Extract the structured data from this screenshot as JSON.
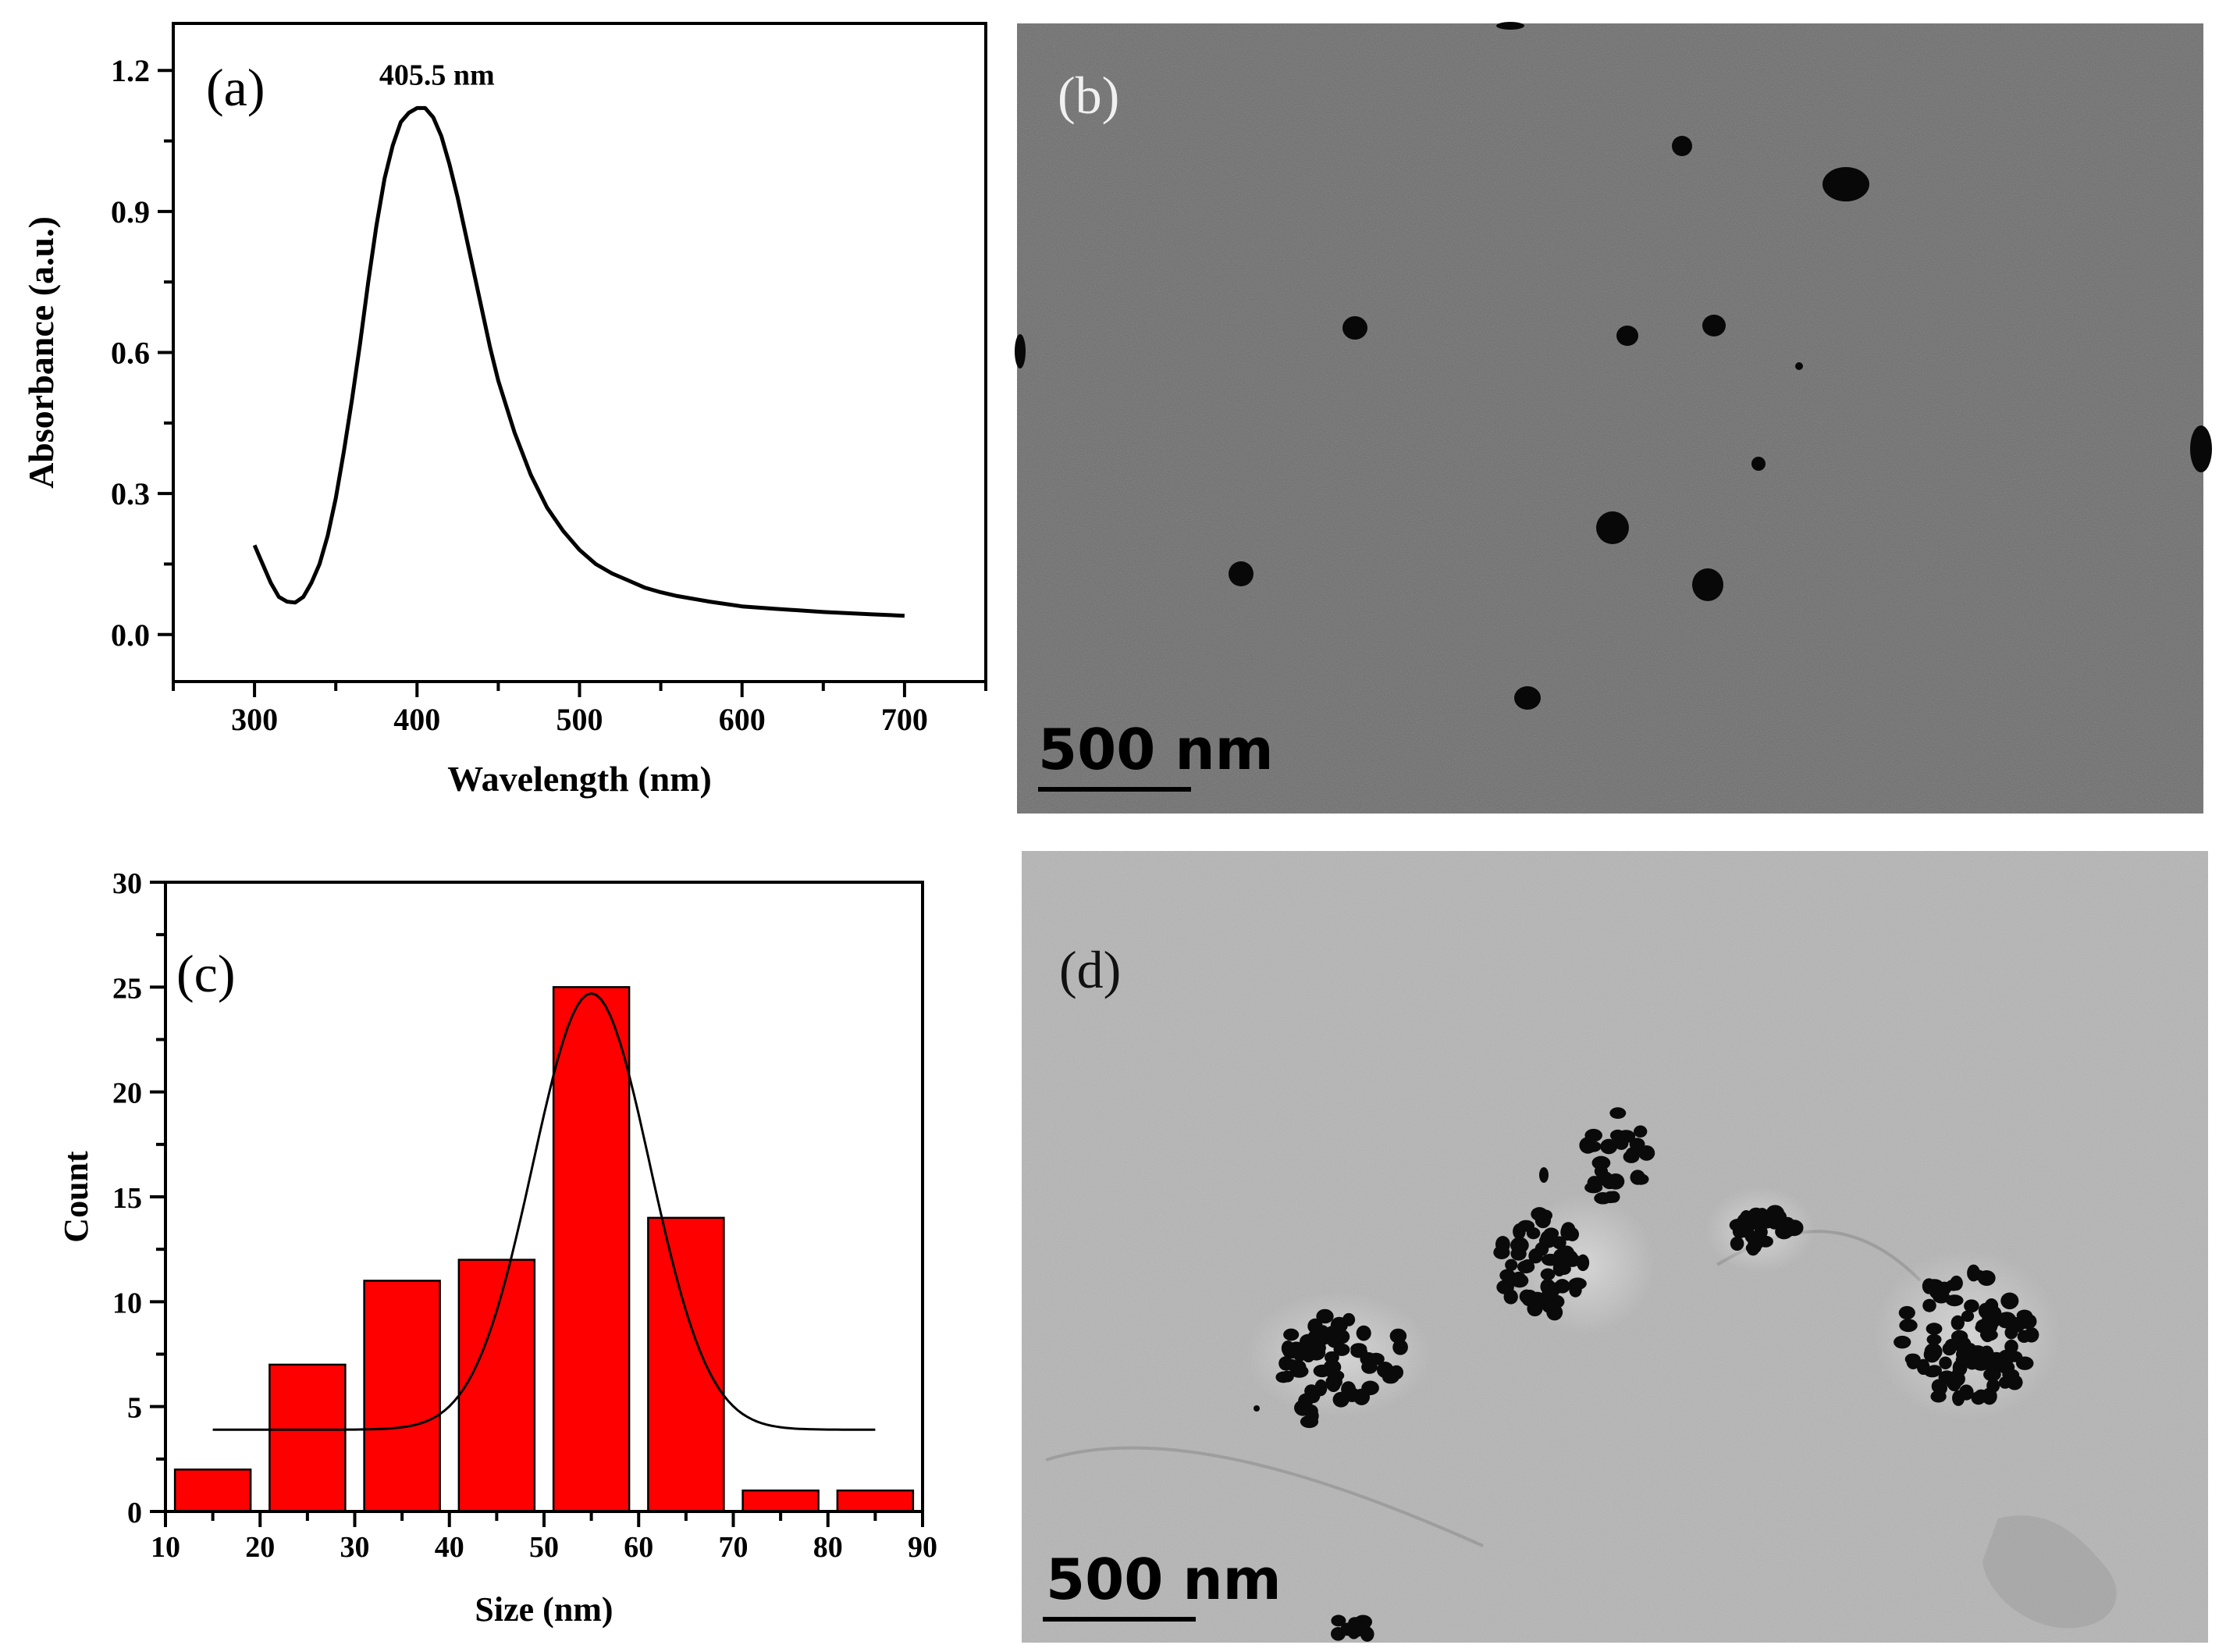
{
  "chart_data": [
    {
      "panel": "(a)",
      "type": "line",
      "xlabel": "Wavelength (nm)",
      "ylabel": "Absorbance (a.u.)",
      "xlim": [
        250,
        750
      ],
      "ylim": [
        -0.1,
        1.3
      ],
      "xticks": [
        300,
        400,
        500,
        600,
        700
      ],
      "yticks": [
        0.0,
        0.3,
        0.6,
        0.9,
        1.2
      ],
      "ytick_labels": [
        "0.0",
        "0.3",
        "0.6",
        "0.9",
        "1.2"
      ],
      "annotation": "405.5 nm",
      "annotation_at": [
        405.5,
        1.12
      ],
      "x": [
        300,
        305,
        310,
        315,
        320,
        325,
        330,
        335,
        340,
        345,
        350,
        355,
        360,
        365,
        370,
        375,
        380,
        385,
        390,
        395,
        400,
        405,
        410,
        415,
        420,
        425,
        430,
        435,
        440,
        445,
        450,
        460,
        470,
        480,
        490,
        500,
        510,
        520,
        530,
        540,
        550,
        560,
        580,
        600,
        620,
        650,
        680,
        700
      ],
      "y": [
        0.19,
        0.15,
        0.11,
        0.08,
        0.07,
        0.068,
        0.08,
        0.11,
        0.15,
        0.21,
        0.29,
        0.39,
        0.5,
        0.62,
        0.75,
        0.87,
        0.97,
        1.04,
        1.09,
        1.11,
        1.12,
        1.12,
        1.1,
        1.06,
        1.0,
        0.93,
        0.85,
        0.77,
        0.69,
        0.61,
        0.54,
        0.43,
        0.34,
        0.27,
        0.22,
        0.18,
        0.15,
        0.13,
        0.115,
        0.1,
        0.09,
        0.082,
        0.07,
        0.06,
        0.055,
        0.048,
        0.043,
        0.04
      ]
    },
    {
      "panel": "(c)",
      "type": "bar",
      "xlabel": "Size (nm)",
      "ylabel": "Count",
      "xlim": [
        10,
        90
      ],
      "ylim": [
        0,
        30
      ],
      "xticks": [
        10,
        20,
        30,
        40,
        50,
        60,
        70,
        80,
        90
      ],
      "yticks": [
        0,
        5,
        10,
        15,
        20,
        25,
        30
      ],
      "bin_width": 10,
      "categories": [
        "10-20",
        "20-30",
        "30-40",
        "40-50",
        "50-60",
        "60-70",
        "70-80",
        "80-90"
      ],
      "bin_centers": [
        15,
        25,
        35,
        45,
        55,
        65,
        75,
        85
      ],
      "values": [
        2,
        7,
        11,
        12,
        25,
        14,
        1,
        1
      ],
      "fit": {
        "type": "gaussian",
        "x_range": [
          15,
          85
        ],
        "y0": 3.9,
        "amplitude": 20.8,
        "center": 55,
        "sigma": 6.2
      },
      "bar_color": "#ff0000"
    }
  ],
  "images": [
    {
      "panel": "(b)",
      "scale_bar_label": "500 nm"
    },
    {
      "panel": "(d)",
      "scale_bar_label": "500 nm"
    }
  ]
}
